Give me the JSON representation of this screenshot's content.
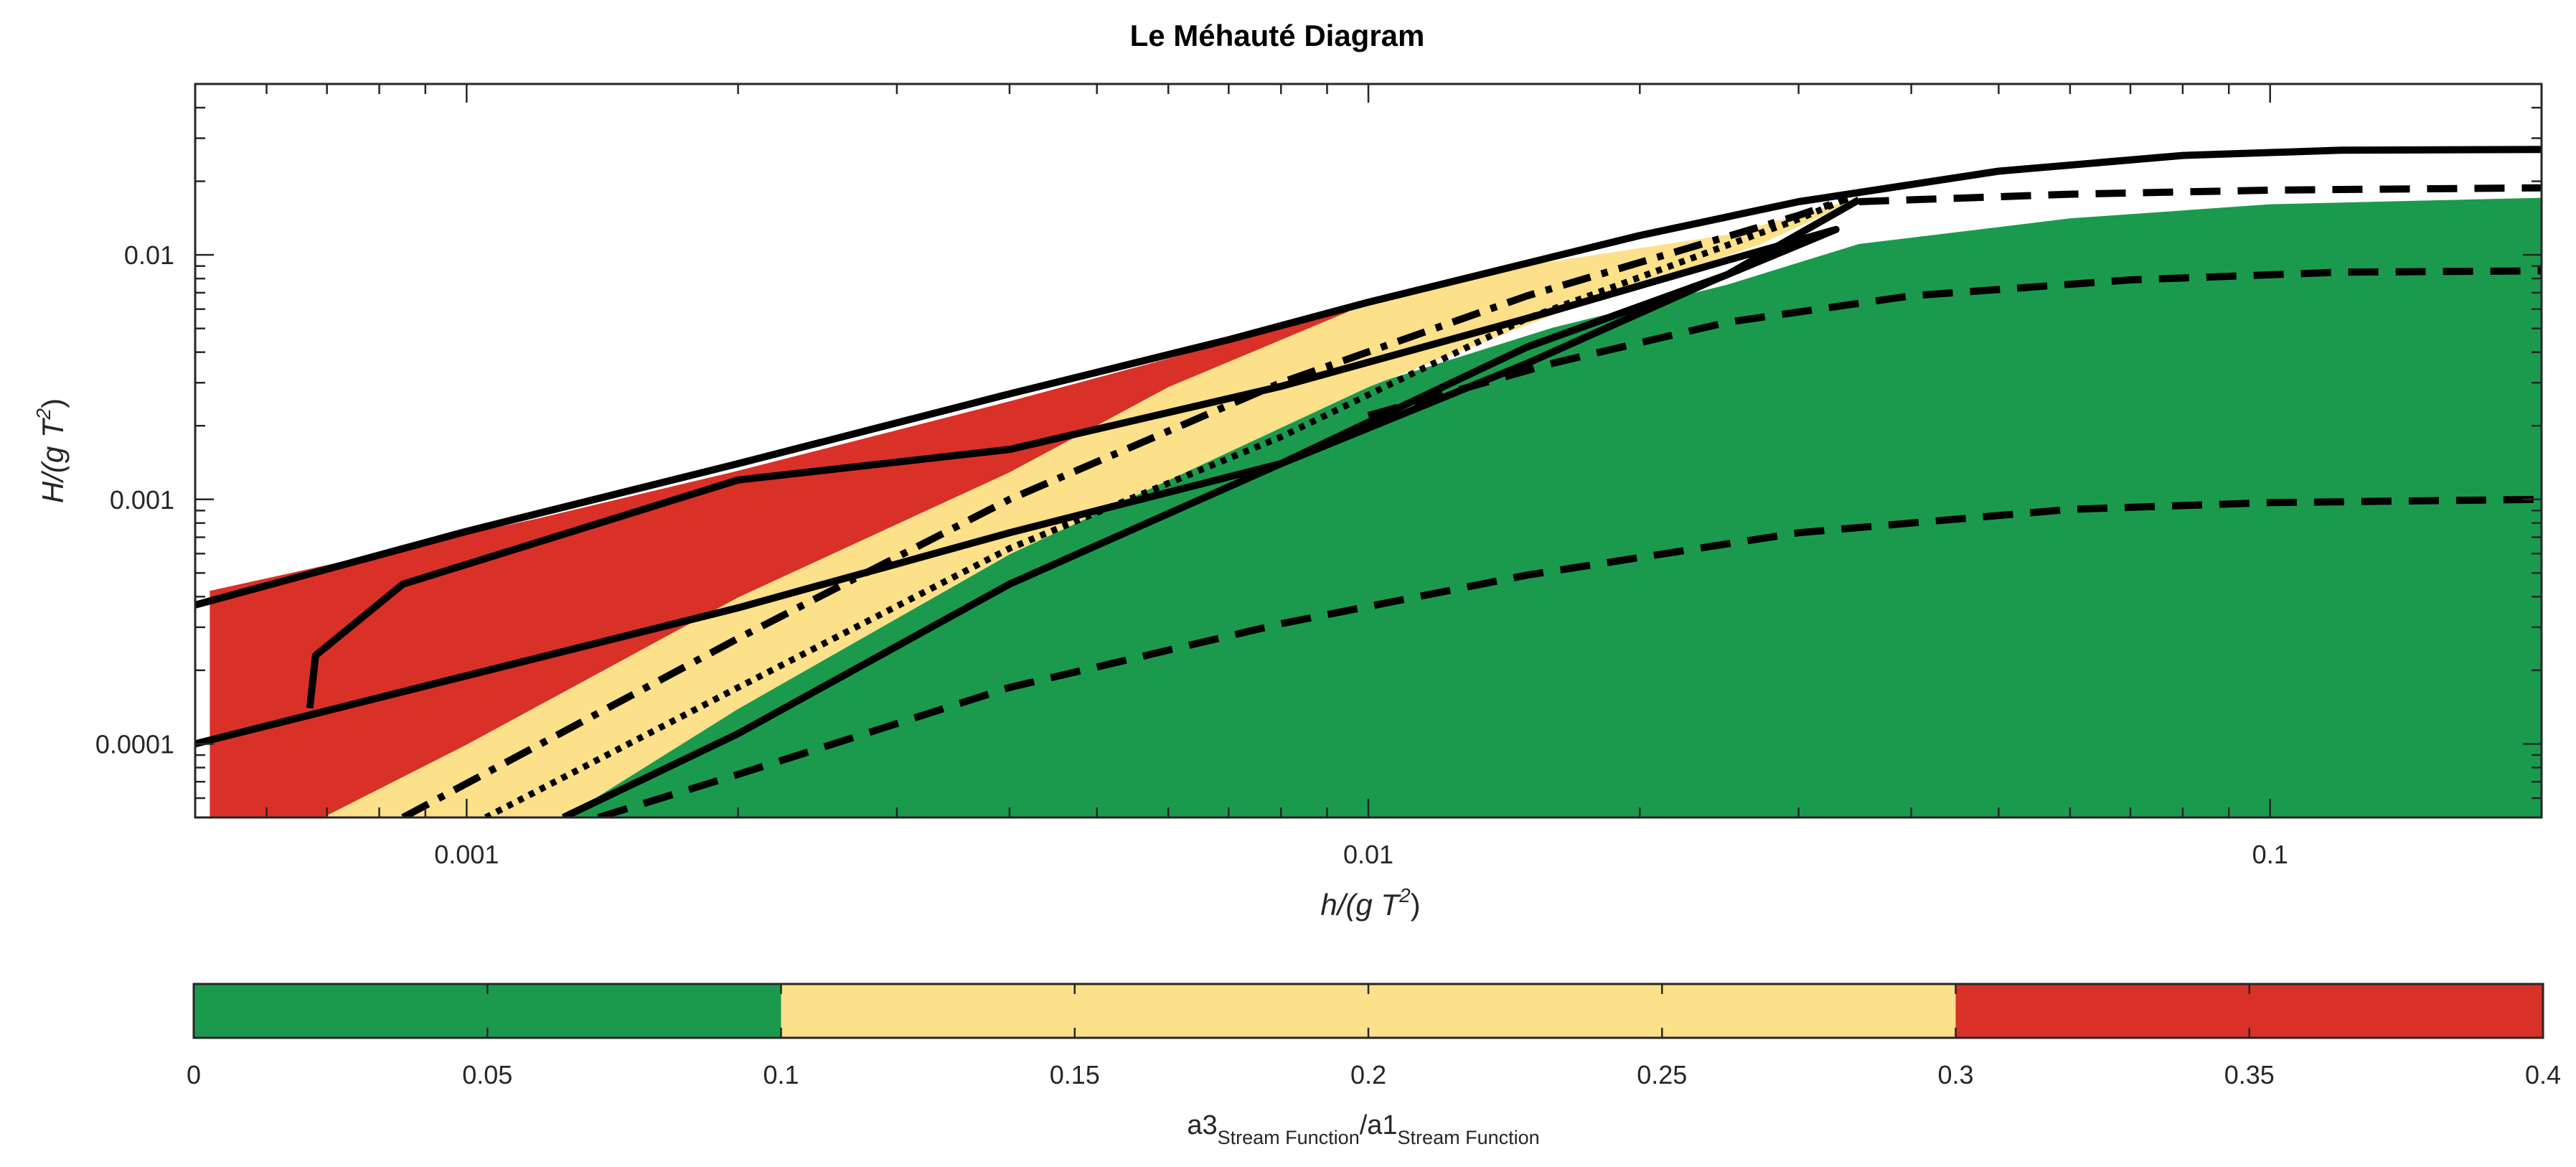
{
  "chart_data": {
    "type": "area",
    "title": "Le Méhauté Diagram",
    "xlabel": {
      "base": "h/(g T",
      "sup": "2",
      "end": ")"
    },
    "ylabel": {
      "base": "H/(g T",
      "sup": "2",
      "end": ")"
    },
    "xscale": "log",
    "yscale": "log",
    "xlim": [
      0.0005,
      0.2
    ],
    "ylim": [
      5e-05,
      0.05
    ],
    "xticks": [
      {
        "value": 0.001,
        "label": "0.001"
      },
      {
        "value": 0.01,
        "label": "0.01"
      },
      {
        "value": 0.1,
        "label": "0.1"
      }
    ],
    "yticks": [
      {
        "value": 0.0001,
        "label": "0.0001"
      },
      {
        "value": 0.001,
        "label": "0.001"
      },
      {
        "value": 0.01,
        "label": "0.01"
      }
    ],
    "regions": [
      {
        "name": "green-region",
        "color": "#1b9a4e",
        "points": [
          [
            0.00128,
            5e-05
          ],
          [
            0.002,
            0.00014
          ],
          [
            0.004,
            0.0006
          ],
          [
            0.01,
            0.0029
          ],
          [
            0.016,
            0.005
          ],
          [
            0.025,
            0.0075
          ],
          [
            0.035,
            0.011
          ],
          [
            0.06,
            0.014
          ],
          [
            0.1,
            0.016
          ],
          [
            0.2,
            0.017
          ],
          [
            0.2,
            5e-05
          ]
        ]
      },
      {
        "name": "yellow-region",
        "color": "#fde08a",
        "points": [
          [
            0.00069,
            5e-05
          ],
          [
            0.001,
            0.0001
          ],
          [
            0.002,
            0.0004
          ],
          [
            0.004,
            0.0013
          ],
          [
            0.006,
            0.0029
          ],
          [
            0.0095,
            0.0059
          ],
          [
            0.015,
            0.009
          ],
          [
            0.025,
            0.012
          ],
          [
            0.033,
            0.016
          ],
          [
            0.035,
            0.017
          ],
          [
            0.027,
            0.011
          ],
          [
            0.016,
            0.0057
          ],
          [
            0.01,
            0.0029
          ],
          [
            0.004,
            0.0006
          ],
          [
            0.002,
            0.00014
          ],
          [
            0.00128,
            5e-05
          ]
        ]
      },
      {
        "name": "red-region",
        "color": "#d93128",
        "points": [
          [
            0.00052,
            5e-05
          ],
          [
            0.00052,
            0.00042
          ],
          [
            0.0012,
            0.00083
          ],
          [
            0.002,
            0.0013
          ],
          [
            0.004,
            0.0025
          ],
          [
            0.0095,
            0.0059
          ],
          [
            0.006,
            0.0029
          ],
          [
            0.004,
            0.0013
          ],
          [
            0.002,
            0.0004
          ],
          [
            0.001,
            0.0001
          ],
          [
            0.00069,
            5e-05
          ]
        ]
      }
    ],
    "curves": [
      {
        "name": "breaking-limit",
        "style": "solid",
        "points": [
          [
            0.0005,
            0.00037
          ],
          [
            0.001,
            0.00074
          ],
          [
            0.002,
            0.0014
          ],
          [
            0.004,
            0.0027
          ],
          [
            0.007,
            0.0045
          ],
          [
            0.01,
            0.0064
          ],
          [
            0.02,
            0.012
          ],
          [
            0.03,
            0.0165
          ],
          [
            0.05,
            0.022
          ],
          [
            0.08,
            0.0255
          ],
          [
            0.12,
            0.0268
          ],
          [
            0.2,
            0.027
          ]
        ]
      },
      {
        "name": "stokes-boundary-loop",
        "style": "solid",
        "points": [
          [
            0.0005,
            0.0001
          ],
          [
            0.001,
            0.00019
          ],
          [
            0.002,
            0.00036
          ],
          [
            0.004,
            0.00073
          ],
          [
            0.008,
            0.0014
          ],
          [
            0.015,
            0.0036
          ],
          [
            0.024,
            0.0078
          ],
          [
            0.033,
            0.0127
          ],
          [
            0.025,
            0.0095
          ],
          [
            0.015,
            0.0055
          ],
          [
            0.008,
            0.0029
          ],
          [
            0.004,
            0.0016
          ],
          [
            0.002,
            0.0012
          ],
          [
            0.00085,
            0.00045
          ],
          [
            0.00068,
            0.00023
          ],
          [
            0.00067,
            0.00014
          ]
        ]
      },
      {
        "name": "dash-dot-boundary",
        "style": "dashdot",
        "points": [
          [
            0.00085,
            5e-05
          ],
          [
            0.002,
            0.00027
          ],
          [
            0.004,
            0.001
          ],
          [
            0.008,
            0.003
          ],
          [
            0.015,
            0.0068
          ],
          [
            0.03,
            0.0145
          ],
          [
            0.034,
            0.017
          ]
        ]
      },
      {
        "name": "dotted-boundary",
        "style": "dotted",
        "points": [
          [
            0.00105,
            5e-05
          ],
          [
            0.002,
            0.00017
          ],
          [
            0.004,
            0.00063
          ],
          [
            0.008,
            0.0018
          ],
          [
            0.015,
            0.0055
          ],
          [
            0.03,
            0.014
          ],
          [
            0.034,
            0.017
          ]
        ]
      },
      {
        "name": "solid-diagonal",
        "style": "solid",
        "points": [
          [
            0.00128,
            5e-05
          ],
          [
            0.002,
            0.00011
          ],
          [
            0.004,
            0.00045
          ],
          [
            0.008,
            0.0014
          ],
          [
            0.015,
            0.0042
          ],
          [
            0.025,
            0.0083
          ],
          [
            0.035,
            0.0168
          ]
        ]
      },
      {
        "name": "dashed-contour-1",
        "style": "dashed",
        "points": [
          [
            0.035,
            0.0165
          ],
          [
            0.06,
            0.0177
          ],
          [
            0.1,
            0.0184
          ],
          [
            0.2,
            0.0188
          ]
        ]
      },
      {
        "name": "dashed-contour-2",
        "style": "dashed",
        "points": [
          [
            0.01,
            0.0022
          ],
          [
            0.016,
            0.0036
          ],
          [
            0.025,
            0.0053
          ],
          [
            0.04,
            0.0068
          ],
          [
            0.07,
            0.0079
          ],
          [
            0.12,
            0.0085
          ],
          [
            0.2,
            0.0086
          ]
        ]
      },
      {
        "name": "dashed-contour-3",
        "style": "dashed",
        "points": [
          [
            0.0014,
            5e-05
          ],
          [
            0.002,
            7.5e-05
          ],
          [
            0.004,
            0.00017
          ],
          [
            0.008,
            0.00031
          ],
          [
            0.015,
            0.00049
          ],
          [
            0.03,
            0.00073
          ],
          [
            0.06,
            0.00091
          ],
          [
            0.1,
            0.00097
          ],
          [
            0.2,
            0.001
          ]
        ]
      }
    ],
    "colorbar": {
      "range": [
        0,
        0.4
      ],
      "ticks": [
        {
          "value": 0,
          "label": "0"
        },
        {
          "value": 0.05,
          "label": "0.05"
        },
        {
          "value": 0.1,
          "label": "0.1"
        },
        {
          "value": 0.15,
          "label": "0.15"
        },
        {
          "value": 0.2,
          "label": "0.2"
        },
        {
          "value": 0.25,
          "label": "0.25"
        },
        {
          "value": 0.3,
          "label": "0.3"
        },
        {
          "value": 0.35,
          "label": "0.35"
        },
        {
          "value": 0.4,
          "label": "0.4"
        }
      ],
      "bands": [
        {
          "from": 0,
          "to": 0.1,
          "color": "#1b9a4e"
        },
        {
          "from": 0.1,
          "to": 0.3,
          "color": "#fde08a"
        },
        {
          "from": 0.3,
          "to": 0.4,
          "color": "#d93128"
        }
      ],
      "label": {
        "a": "a3",
        "a_sub": "Stream Function",
        "slash": "/a1",
        "b_sub": "Stream Function"
      }
    }
  }
}
